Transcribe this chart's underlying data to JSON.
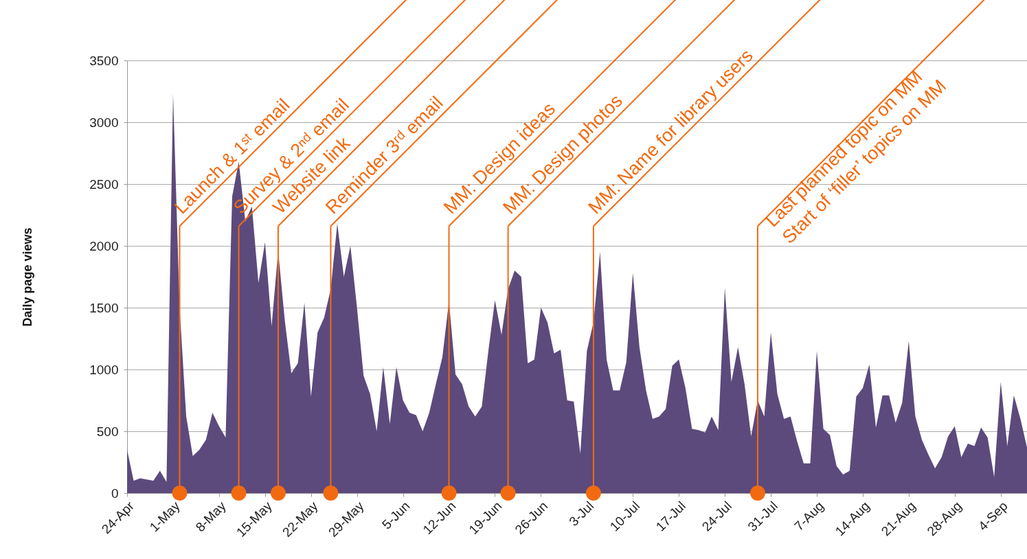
{
  "chart_data": {
    "type": "area",
    "ylabel": "Daily page views",
    "grid": "y",
    "x": [
      "--04-24",
      "--04-25",
      "--04-26",
      "--04-27",
      "--04-28",
      "--04-29",
      "--04-30",
      "--05-01",
      "--05-02",
      "--05-03",
      "--05-04",
      "--05-05",
      "--05-06",
      "--05-07",
      "--05-08",
      "--05-09",
      "--05-10",
      "--05-11",
      "--05-12",
      "--05-13",
      "--05-14",
      "--05-15",
      "--05-16",
      "--05-17",
      "--05-18",
      "--05-19",
      "--05-20",
      "--05-21",
      "--05-22",
      "--05-23",
      "--05-24",
      "--05-25",
      "--05-26",
      "--05-27",
      "--05-28",
      "--05-29",
      "--05-30",
      "--05-31",
      "--06-01",
      "--06-02",
      "--06-03",
      "--06-04",
      "--06-05",
      "--06-06",
      "--06-07",
      "--06-08",
      "--06-09",
      "--06-10",
      "--06-11",
      "--06-12",
      "--06-13",
      "--06-14",
      "--06-15",
      "--06-16",
      "--06-17",
      "--06-18",
      "--06-19",
      "--06-20",
      "--06-21",
      "--06-22",
      "--06-23",
      "--06-24",
      "--06-25",
      "--06-26",
      "--06-27",
      "--06-28",
      "--06-29",
      "--06-30",
      "--07-01",
      "--07-02",
      "--07-03",
      "--07-04",
      "--07-05",
      "--07-06",
      "--07-07",
      "--07-08",
      "--07-09",
      "--07-10",
      "--07-11",
      "--07-12",
      "--07-13",
      "--07-14",
      "--07-15",
      "--07-16",
      "--07-17",
      "--07-18",
      "--07-19",
      "--07-20",
      "--07-21",
      "--07-22",
      "--07-23",
      "--07-24",
      "--07-25",
      "--07-26",
      "--07-27",
      "--07-28",
      "--07-29",
      "--07-30",
      "--07-31",
      "--08-01",
      "--08-02",
      "--08-03",
      "--08-04",
      "--08-05",
      "--08-06",
      "--08-07",
      "--08-08",
      "--08-09",
      "--08-10",
      "--08-11",
      "--08-12",
      "--08-13",
      "--08-14",
      "--08-15",
      "--08-16",
      "--08-17",
      "--08-18",
      "--08-19",
      "--08-20",
      "--08-21",
      "--08-22",
      "--08-23",
      "--08-24",
      "--08-25",
      "--08-26",
      "--08-27",
      "--08-28",
      "--08-29",
      "--08-30",
      "--08-31",
      "--09-01",
      "--09-02",
      "--09-03",
      "--09-04",
      "--09-05",
      "--09-06",
      "--09-07",
      "--09-08"
    ],
    "series": [
      {
        "color": "#5c4a7d",
        "values": [
          350,
          100,
          120,
          110,
          100,
          180,
          90,
          3230,
          1500,
          620,
          300,
          350,
          430,
          650,
          540,
          450,
          2400,
          2680,
          2200,
          2320,
          1700,
          2030,
          1350,
          1960,
          1400,
          970,
          1050,
          1540,
          780,
          1300,
          1420,
          1650,
          2180,
          1750,
          2000,
          1500,
          950,
          800,
          500,
          1020,
          560,
          1020,
          750,
          650,
          630,
          500,
          650,
          880,
          1100,
          1550,
          960,
          880,
          700,
          620,
          700,
          1150,
          1560,
          1280,
          1650,
          1800,
          1750,
          1050,
          1080,
          1500,
          1380,
          1130,
          1160,
          750,
          740,
          320,
          1150,
          1380,
          1950,
          1080,
          830,
          830,
          1060,
          1780,
          1180,
          830,
          600,
          620,
          680,
          1030,
          1080,
          850,
          520,
          510,
          490,
          620,
          510,
          1660,
          900,
          1180,
          880,
          460,
          750,
          620,
          1300,
          800,
          600,
          620,
          420,
          240,
          240,
          1150,
          520,
          470,
          220,
          150,
          180,
          780,
          850,
          1040,
          530,
          790,
          790,
          570,
          730,
          1230,
          620,
          430,
          310,
          200,
          290,
          460,
          540,
          290,
          400,
          380,
          530,
          450,
          130,
          900,
          380,
          790,
          600,
          370
        ]
      }
    ],
    "xlim": [
      "--04-24",
      "--09-08"
    ],
    "xticks": [
      {
        "value": "--04-24",
        "label": "24-Apr"
      },
      {
        "value": "--05-01",
        "label": "1-May"
      },
      {
        "value": "--05-08",
        "label": "8-May"
      },
      {
        "value": "--05-15",
        "label": "15-May"
      },
      {
        "value": "--05-22",
        "label": "22-May"
      },
      {
        "value": "--05-29",
        "label": "29-May"
      },
      {
        "value": "--06-05",
        "label": "5-Jun"
      },
      {
        "value": "--06-12",
        "label": "12-Jun"
      },
      {
        "value": "--06-19",
        "label": "19-Jun"
      },
      {
        "value": "--06-26",
        "label": "26-Jun"
      },
      {
        "value": "--07-03",
        "label": "3-Jul"
      },
      {
        "value": "--07-10",
        "label": "10-Jul"
      },
      {
        "value": "--07-17",
        "label": "17-Jul"
      },
      {
        "value": "--07-24",
        "label": "24-Jul"
      },
      {
        "value": "--07-31",
        "label": "31-Jul"
      },
      {
        "value": "--08-07",
        "label": "7-Aug"
      },
      {
        "value": "--08-14",
        "label": "14-Aug"
      },
      {
        "value": "--08-21",
        "label": "21-Aug"
      },
      {
        "value": "--08-28",
        "label": "28-Aug"
      },
      {
        "value": "--09-04",
        "label": "4-Sep"
      }
    ],
    "ylim": [
      0,
      3500
    ],
    "yticks": [
      0,
      500,
      1000,
      1500,
      2000,
      2500,
      3000,
      3500
    ],
    "annotations": [
      {
        "text": "Launch & 1ˢᵗ email",
        "x": "--05-02",
        "y": 0
      },
      {
        "text": "Survey & 2ⁿᵈ email",
        "x": "--05-11",
        "y": 0
      },
      {
        "text": "Website link",
        "x": "--05-17",
        "y": 0
      },
      {
        "text": "Reminder 3ʳᵈ email",
        "x": "--05-25",
        "y": 0
      },
      {
        "text": "MM: Design ideas",
        "x": "--06-12",
        "y": 0
      },
      {
        "text": "MM: Design photos",
        "x": "--06-21",
        "y": 0
      },
      {
        "text": "MM: Name for library users",
        "x": "--07-04",
        "y": 0
      },
      {
        "text": "Last planned topic on MM\nStart of ‘filler’ topics on MM",
        "x": "--07-29",
        "y": 0
      }
    ]
  }
}
